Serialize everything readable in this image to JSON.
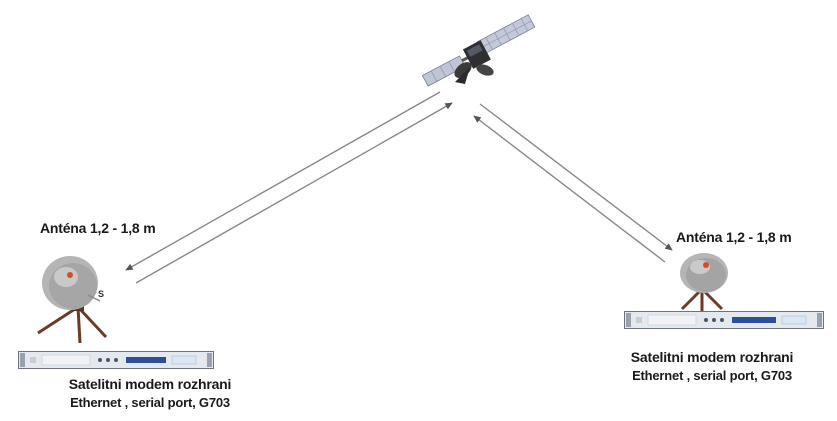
{
  "left_station": {
    "antenna_label": "Anténa 1,2  - 1,8 m",
    "modem_title": "Satelitni modem rozhrani",
    "modem_subtitle": "Ethernet , serial port, G703"
  },
  "right_station": {
    "antenna_label": "Anténa 1,2 - 1,8 m",
    "modem_title": "Satelitni modem rozhrani",
    "modem_subtitle": "Ethernet , serial port, G703"
  },
  "colors": {
    "dish": "#b5b5b5",
    "dish_shadow": "#8e8e8e",
    "tripod": "#6b3b2a",
    "feed": "#d94a2a",
    "link_line": "#777777",
    "modem_body": "#e4e8ef",
    "modem_display": "#2d4f9a",
    "satellite_panel": "#b7bfd3"
  }
}
